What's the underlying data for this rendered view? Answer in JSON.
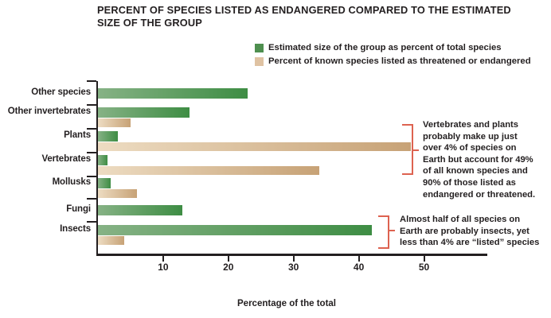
{
  "title": "PERCENT OF SPECIES LISTED AS ENDANGERED COMPARED TO THE ESTIMATED\nSIZE OF THE GROUP",
  "legend": {
    "items": [
      {
        "label": "Estimated size of the group as percent of total species",
        "color": "#4e8f4f"
      },
      {
        "label": "Percent of known species listed as threatened or endangered",
        "color": "#dfc2a2"
      }
    ]
  },
  "chart_data": {
    "type": "bar",
    "orientation": "horizontal",
    "title": "PERCENT OF SPECIES LISTED AS ENDANGERED COMPARED TO THE ESTIMATED SIZE OF THE GROUP",
    "categories": [
      "Other species",
      "Other invertebrates",
      "Plants",
      "Vertebrates",
      "Mollusks",
      "Fungi",
      "Insects"
    ],
    "series": [
      {
        "name": "Estimated size of the group as percent of total species",
        "values": [
          23,
          14,
          3,
          1.5,
          2,
          13,
          42
        ],
        "color_start": "#86b285",
        "color_end": "#3e8d44"
      },
      {
        "name": "Percent of known species listed as threatened or endangered",
        "values": [
          null,
          5,
          48,
          34,
          6,
          null,
          4
        ],
        "color_start": "#eddcc2",
        "color_end": "#c7a276"
      }
    ],
    "xlabel": "Percentage of the total",
    "xticks": [
      10,
      20,
      30,
      40,
      50
    ],
    "xlim": [
      0,
      57
    ],
    "grid": false,
    "legend_position": "top-right"
  },
  "annotations": [
    {
      "text": "Vertebrates and plants\nprobably make up just\nover 4% of species on\nEarth but account for 49%\nof all known species and\n90% of those listed as\nendangered or threatened."
    },
    {
      "text": "Almost half of all species on\nEarth are probably insects, yet\nless than 4% are “listed” species"
    }
  ],
  "colors": {
    "text": "#231f20",
    "axis": "#231f20",
    "bracket": "#dd6250",
    "background": "#ffffff"
  }
}
